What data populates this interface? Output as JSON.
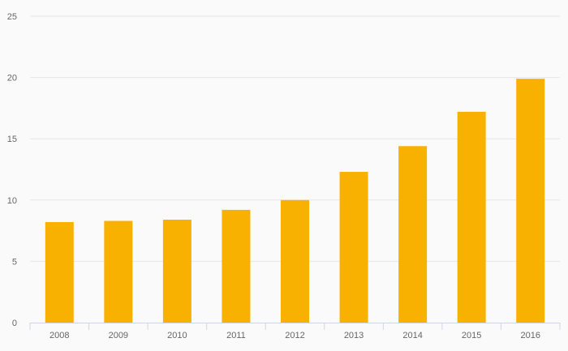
{
  "chart_data": {
    "type": "bar",
    "title": "",
    "xlabel": "",
    "ylabel": "",
    "categories": [
      "2008",
      "2009",
      "2010",
      "2011",
      "2012",
      "2013",
      "2014",
      "2015",
      "2016"
    ],
    "values": [
      8.2,
      8.3,
      8.4,
      9.2,
      10.0,
      12.3,
      14.4,
      17.2,
      19.9
    ],
    "ylim": [
      0,
      25
    ],
    "yticks": [
      0,
      5,
      10,
      15,
      20,
      25
    ],
    "grid": true,
    "legend": "none",
    "bar_color": "#f9b100"
  }
}
